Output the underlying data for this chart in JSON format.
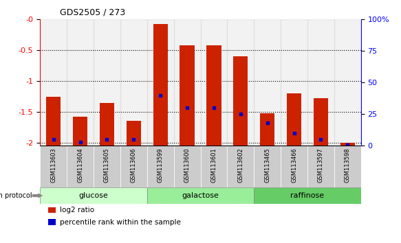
{
  "title": "GDS2505 / 273",
  "samples": [
    "GSM113603",
    "GSM113604",
    "GSM113605",
    "GSM113606",
    "GSM113599",
    "GSM113600",
    "GSM113601",
    "GSM113602",
    "GSM113465",
    "GSM113466",
    "GSM113597",
    "GSM113598"
  ],
  "log2_ratio": [
    -1.25,
    -1.58,
    -1.35,
    -1.65,
    -0.07,
    -0.42,
    -0.42,
    -0.6,
    -1.52,
    -1.2,
    -1.28,
    -2.0
  ],
  "percentile": [
    5,
    3,
    5,
    5,
    40,
    30,
    30,
    25,
    18,
    10,
    5,
    1
  ],
  "groups": [
    {
      "label": "glucose",
      "start": 0,
      "end": 4,
      "color": "#ccffcc"
    },
    {
      "label": "galactose",
      "start": 4,
      "end": 8,
      "color": "#99ee99"
    },
    {
      "label": "raffinose",
      "start": 8,
      "end": 12,
      "color": "#66cc66"
    }
  ],
  "bar_color": "#cc2200",
  "dot_color": "#0000cc",
  "ymin": -2.05,
  "ymax": 0.0,
  "yticks_left": [
    0,
    -0.5,
    -1.0,
    -1.5,
    -2.0
  ],
  "yticklabels_left": [
    "-0",
    "-0.5",
    "-1",
    "-1.5",
    "-2"
  ],
  "yticks_right_pct": [
    0,
    25,
    50,
    75,
    100
  ],
  "yticklabels_right": [
    "0",
    "25",
    "50",
    "75",
    "100%"
  ],
  "bar_width": 0.55,
  "legend_items": [
    {
      "color": "#cc2200",
      "label": "log2 ratio"
    },
    {
      "color": "#0000cc",
      "label": "percentile rank within the sample"
    }
  ],
  "growth_protocol_label": "growth protocol",
  "group_colors": [
    "#ccffcc",
    "#99ee99",
    "#66cc66"
  ],
  "sample_box_color": "#cccccc"
}
